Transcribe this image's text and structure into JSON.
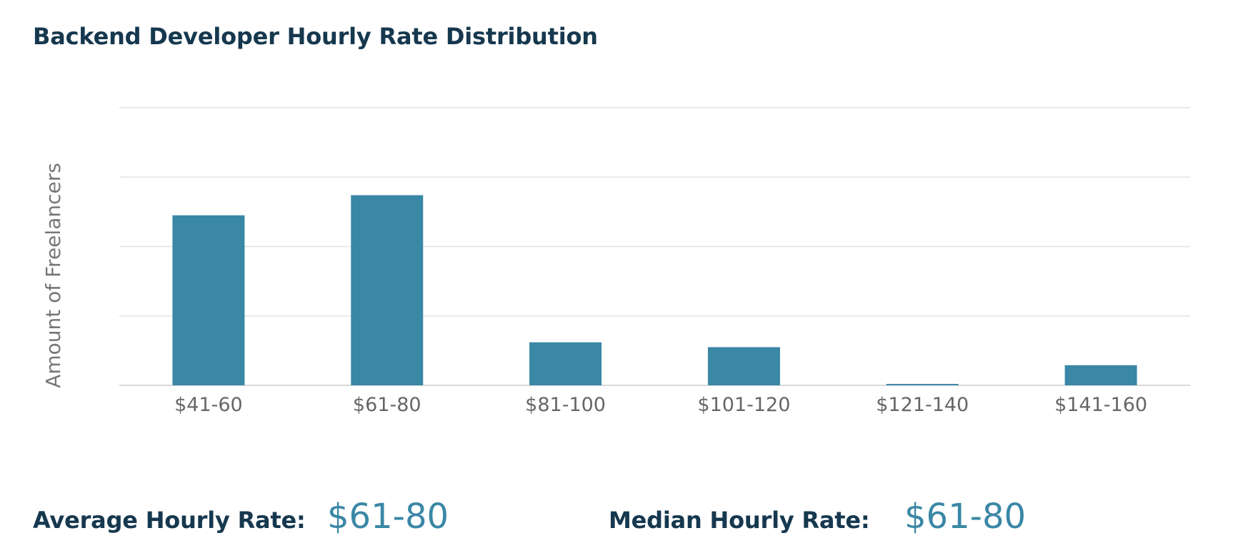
{
  "chart_data": {
    "type": "bar",
    "title": "Backend Developer Hourly Rate Distribution",
    "xlabel": "",
    "ylabel": "Amount of Freelancers",
    "categories": [
      "$41-60",
      "$61-80",
      "$81-100",
      "$101-120",
      "$121-140",
      "$141-160"
    ],
    "values": [
      2.45,
      2.74,
      0.62,
      0.55,
      0.02,
      0.29
    ],
    "ylim": [
      0,
      4
    ],
    "grid": true,
    "legend": "none",
    "bar_color": "#3a87a6"
  },
  "stats": {
    "average_label": "Average Hourly Rate:",
    "average_value": "$61-80",
    "median_label": "Median Hourly Rate:",
    "median_value": "$61-80"
  },
  "colors": {
    "title": "#16384f",
    "accent": "#3a87a6",
    "grid": "#e3e3e3",
    "tick_text": "#666666"
  }
}
